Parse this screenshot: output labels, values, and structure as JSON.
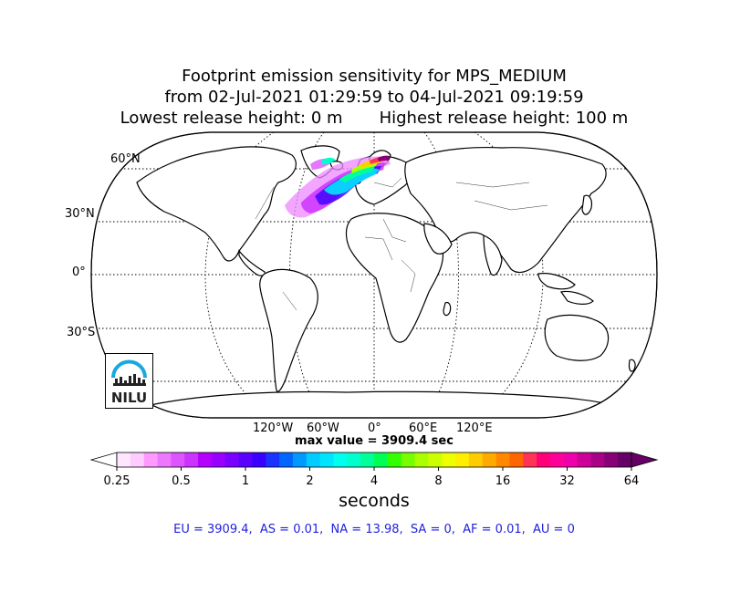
{
  "title": {
    "line1": "Footprint emission sensitivity for MPS_MEDIUM",
    "line2": "from 02-Jul-2021 01:29:59 to 04-Jul-2021 09:19:59",
    "line3": "Lowest release height: 0 m       Highest release height: 100 m"
  },
  "map": {
    "projection": "robinson-like global",
    "lat_labels": [
      "60°N",
      "30°N",
      "0°",
      "30°S"
    ],
    "lon_labels": [
      "120°W",
      "60°W",
      "0°",
      "60°E",
      "120°E"
    ],
    "grid": "dotted graticule",
    "plume_region": "North Atlantic / Northern Europe"
  },
  "max_value": "max value = 3909.4 sec",
  "colorbar": {
    "tick_labels": [
      "0.25",
      "0.5",
      "1",
      "2",
      "4",
      "8",
      "16",
      "32",
      "64"
    ],
    "units": "seconds",
    "colors": [
      "#ffe6ff",
      "#ffccff",
      "#ff99ff",
      "#ee77ff",
      "#dd55ff",
      "#cc33ff",
      "#b300ff",
      "#9900ff",
      "#7a00ff",
      "#5a00ff",
      "#3a00ff",
      "#1a33ff",
      "#0066ff",
      "#0099ff",
      "#00ccff",
      "#00e5ff",
      "#00ffee",
      "#00ffcc",
      "#00ff99",
      "#00ff55",
      "#33ff00",
      "#77ff00",
      "#aaff00",
      "#ccff00",
      "#eeff00",
      "#ffee00",
      "#ffcc00",
      "#ffaa00",
      "#ff8800",
      "#ff6600",
      "#ff3355",
      "#ff0077",
      "#ff0099",
      "#ee00aa",
      "#cc0099",
      "#aa0088",
      "#880077",
      "#660066"
    ]
  },
  "summary": "EU = 3909.4,  AS = 0.01,  NA = 13.98,  SA = 0,  AF = 0.01,  AU = 0",
  "logo": {
    "text": "NILU",
    "color": "#1aa7e0"
  }
}
